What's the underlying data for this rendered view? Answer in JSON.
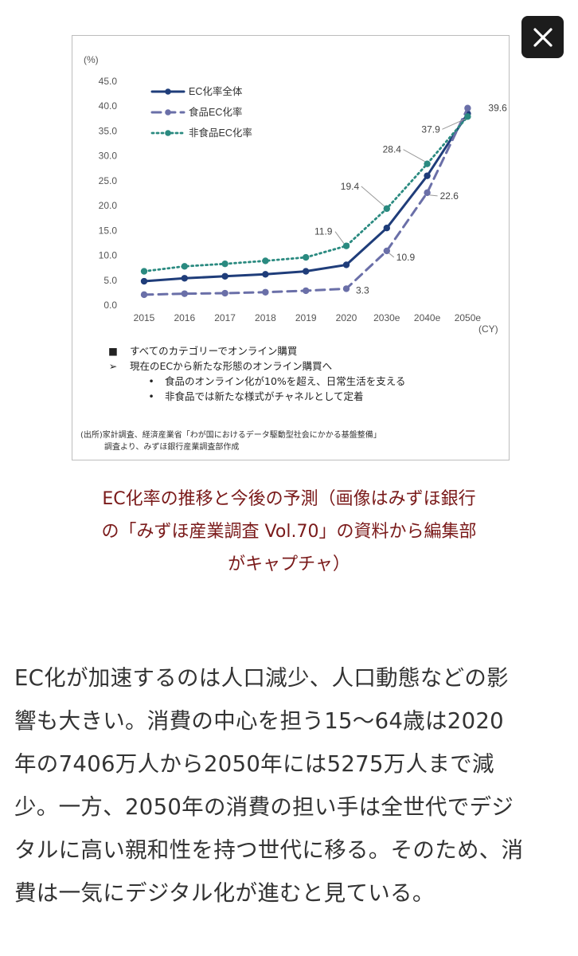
{
  "close_button": {
    "icon": "close-icon"
  },
  "chart_data": {
    "type": "line",
    "y_unit": "(%)",
    "x_unit": "(CY)",
    "categories": [
      "2015",
      "2016",
      "2017",
      "2018",
      "2019",
      "2020",
      "2030e",
      "2040e",
      "2050e"
    ],
    "ylim": [
      0,
      45
    ],
    "yticks": [
      "0.0",
      "5.0",
      "10.0",
      "15.0",
      "20.0",
      "25.0",
      "30.0",
      "35.0",
      "40.0",
      "45.0"
    ],
    "grid": false,
    "legend_position": "top-left",
    "series": [
      {
        "name": "EC化率全体",
        "style": "solid",
        "color": "#1f3d7a",
        "values": [
          4.8,
          5.4,
          5.8,
          6.2,
          6.8,
          8.1,
          15.5,
          26.0,
          38.5
        ]
      },
      {
        "name": "食品EC化率",
        "style": "dashed",
        "color": "#6a6fa8",
        "values": [
          2.1,
          2.3,
          2.4,
          2.6,
          2.9,
          3.3,
          10.9,
          22.6,
          39.6
        ]
      },
      {
        "name": "非食品EC化率",
        "style": "dotted",
        "color": "#2a8a80",
        "values": [
          6.8,
          7.8,
          8.3,
          8.9,
          9.6,
          11.9,
          19.4,
          28.4,
          37.9
        ]
      }
    ],
    "annotations": [
      {
        "text": "3.3",
        "series": 1,
        "index": 5
      },
      {
        "text": "10.9",
        "series": 1,
        "index": 6
      },
      {
        "text": "22.6",
        "series": 1,
        "index": 7
      },
      {
        "text": "39.6",
        "series": 1,
        "index": 8
      },
      {
        "text": "11.9",
        "series": 2,
        "index": 5
      },
      {
        "text": "19.4",
        "series": 2,
        "index": 6
      },
      {
        "text": "28.4",
        "series": 2,
        "index": 7
      },
      {
        "text": "37.9",
        "series": 2,
        "index": 8
      }
    ]
  },
  "notes": [
    {
      "mark": "■",
      "text": "すべてのカテゴリーでオンライン購買",
      "level": 0
    },
    {
      "mark": "➢",
      "text": "現在のECから新たな形態のオンライン購買へ",
      "level": 0
    },
    {
      "mark": "•",
      "text": "食品のオンライン化が10%を超え、日常生活を支える",
      "level": 1
    },
    {
      "mark": "•",
      "text": "非食品では新たな様式がチャネルとして定着",
      "level": 1
    }
  ],
  "source": {
    "line1": "(出所)家計調査、経済産業省「わが国におけるデータ駆動型社会にかかる基盤整備」",
    "line2": "調査より、みずほ銀行産業調査部作成"
  },
  "caption": {
    "line1": "EC化率の推移と今後の予測（画像はみずほ銀行",
    "line2": "の「みずほ産業調査 Vol.70」の資料から編集部",
    "line3": "がキャプチャ）"
  },
  "body_lines": [
    "EC化が加速するのは人口減少、人口動態などの影",
    "響も大きい。消費の中心を担う15〜64歳は2020",
    "年の7406万人から2050年には5275万人まで減",
    "少。一方、2050年の消費の担い手は全世代でデジ",
    "タルに高い親和性を持つ世代に移る。そのため、消",
    "費は一気にデジタル化が進むと見ている。"
  ]
}
